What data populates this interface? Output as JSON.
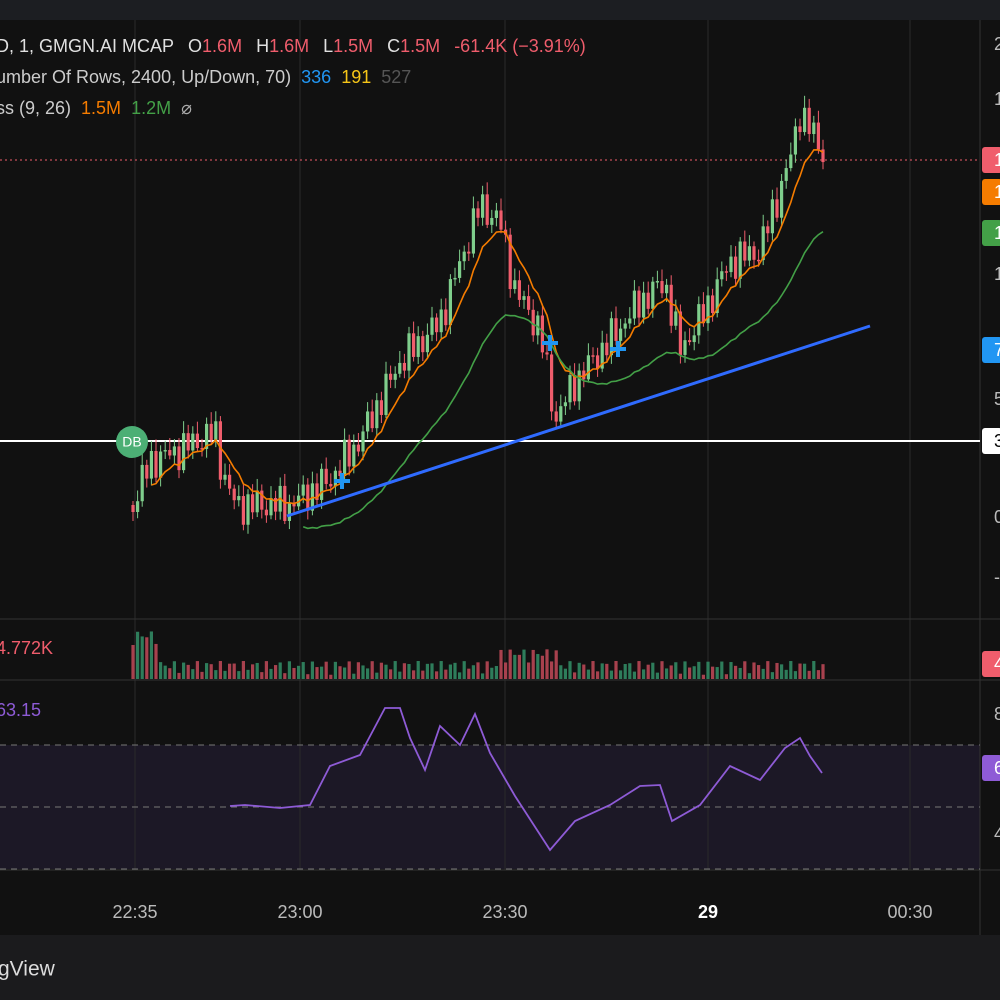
{
  "header": {
    "symbol": "D, 1, GMGN.AI MCAP",
    "ohlc": [
      {
        "key": "O",
        "value": "1.6M"
      },
      {
        "key": "H",
        "value": "1.6M"
      },
      {
        "key": "L",
        "value": "1.5M"
      },
      {
        "key": "C",
        "value": "1.5M"
      }
    ],
    "change": "-61.4K (−3.91%)"
  },
  "indicators": [
    {
      "name": "umber Of Rows, 2400, Up/Down, 70)",
      "values": [
        "336",
        "191",
        "527"
      ]
    },
    {
      "name": "ss (9, 26)",
      "values": [
        "1.5M",
        "1.2M",
        "⌀"
      ]
    }
  ],
  "marker": "DB",
  "volume_label": "4.772K",
  "rsi_label": "63.15",
  "price_axis": [
    "2",
    "1",
    "1",
    "5",
    "0",
    "-1"
  ],
  "badges": [
    "1",
    "1",
    "1",
    "7",
    "3",
    "4",
    "6"
  ],
  "rsi_axis": [
    "8",
    "4"
  ],
  "time_axis": [
    "22:35",
    "23:00",
    "23:30",
    "29",
    "00:30"
  ],
  "footer": "gView"
}
